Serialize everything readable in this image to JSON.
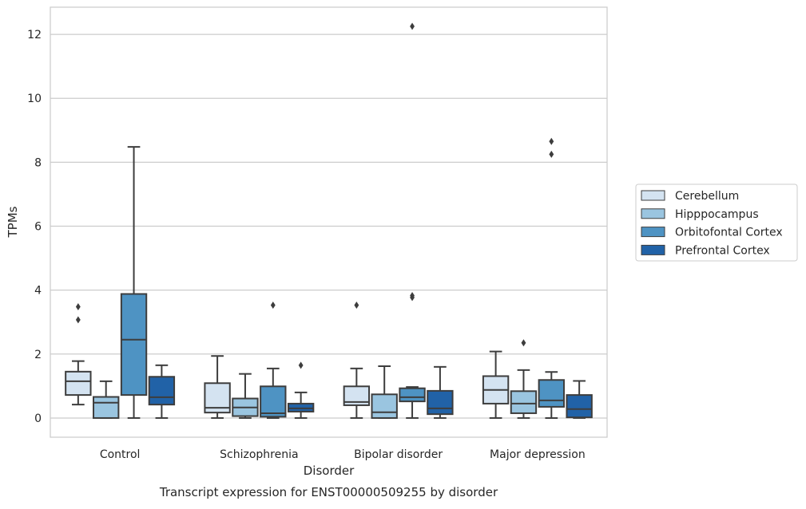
{
  "colors": {
    "grid": "#cccccc",
    "frame": "#cccccc",
    "box_edge": "#3d3d3d",
    "series": [
      "#d4e3f1",
      "#9ac5e0",
      "#4e93c3",
      "#2162a7"
    ]
  },
  "chart_data": {
    "type": "box",
    "title": "Transcript expression for ENST00000509255 by disorder",
    "xlabel": "Disorder",
    "ylabel": "TPMs",
    "ylim": [
      -0.6,
      12.85
    ],
    "yticks": [
      0,
      2,
      4,
      6,
      8,
      10,
      12
    ],
    "grid": "horizontal",
    "legend_position": "right",
    "categories": [
      "Control",
      "Schizophrenia",
      "Bipolar disorder",
      "Major depression"
    ],
    "series": [
      {
        "name": "Cerebellum",
        "boxes": [
          {
            "whislo": 0.42,
            "q1": 0.72,
            "med": 1.15,
            "q3": 1.45,
            "whishi": 1.78,
            "fliers": [
              3.07,
              3.48
            ]
          },
          {
            "whislo": 0.0,
            "q1": 0.17,
            "med": 0.32,
            "q3": 1.09,
            "whishi": 1.94,
            "fliers": []
          },
          {
            "whislo": 0.0,
            "q1": 0.4,
            "med": 0.5,
            "q3": 0.99,
            "whishi": 1.55,
            "fliers": [
              3.53
            ]
          },
          {
            "whislo": 0.0,
            "q1": 0.45,
            "med": 0.88,
            "q3": 1.31,
            "whishi": 2.08,
            "fliers": []
          }
        ]
      },
      {
        "name": "Hipppocampus",
        "boxes": [
          {
            "whislo": 0.0,
            "q1": 0.0,
            "med": 0.48,
            "q3": 0.66,
            "whishi": 1.15,
            "fliers": []
          },
          {
            "whislo": 0.0,
            "q1": 0.06,
            "med": 0.33,
            "q3": 0.61,
            "whishi": 1.38,
            "fliers": []
          },
          {
            "whislo": 0.0,
            "q1": 0.0,
            "med": 0.18,
            "q3": 0.74,
            "whishi": 1.62,
            "fliers": []
          },
          {
            "whislo": 0.0,
            "q1": 0.15,
            "med": 0.45,
            "q3": 0.84,
            "whishi": 1.5,
            "fliers": [
              2.35
            ]
          }
        ]
      },
      {
        "name": "Orbitofontal Cortex",
        "boxes": [
          {
            "whislo": 0.0,
            "q1": 0.72,
            "med": 2.45,
            "q3": 3.88,
            "whishi": 8.48,
            "fliers": []
          },
          {
            "whislo": 0.0,
            "q1": 0.04,
            "med": 0.15,
            "q3": 0.99,
            "whishi": 1.55,
            "fliers": [
              3.53
            ]
          },
          {
            "whislo": 0.0,
            "q1": 0.52,
            "med": 0.65,
            "q3": 0.93,
            "whishi": 0.97,
            "fliers": [
              3.77,
              3.83,
              12.25
            ]
          },
          {
            "whislo": 0.0,
            "q1": 0.35,
            "med": 0.55,
            "q3": 1.19,
            "whishi": 1.44,
            "fliers": [
              8.25,
              8.65
            ]
          }
        ]
      },
      {
        "name": "Prefrontal Cortex",
        "boxes": [
          {
            "whislo": 0.0,
            "q1": 0.42,
            "med": 0.65,
            "q3": 1.29,
            "whishi": 1.65,
            "fliers": []
          },
          {
            "whislo": 0.0,
            "q1": 0.2,
            "med": 0.3,
            "q3": 0.45,
            "whishi": 0.8,
            "fliers": [
              1.65
            ]
          },
          {
            "whislo": 0.0,
            "q1": 0.12,
            "med": 0.3,
            "q3": 0.85,
            "whishi": 1.6,
            "fliers": []
          },
          {
            "whislo": 0.0,
            "q1": 0.02,
            "med": 0.28,
            "q3": 0.72,
            "whishi": 1.16,
            "fliers": []
          }
        ]
      }
    ]
  }
}
